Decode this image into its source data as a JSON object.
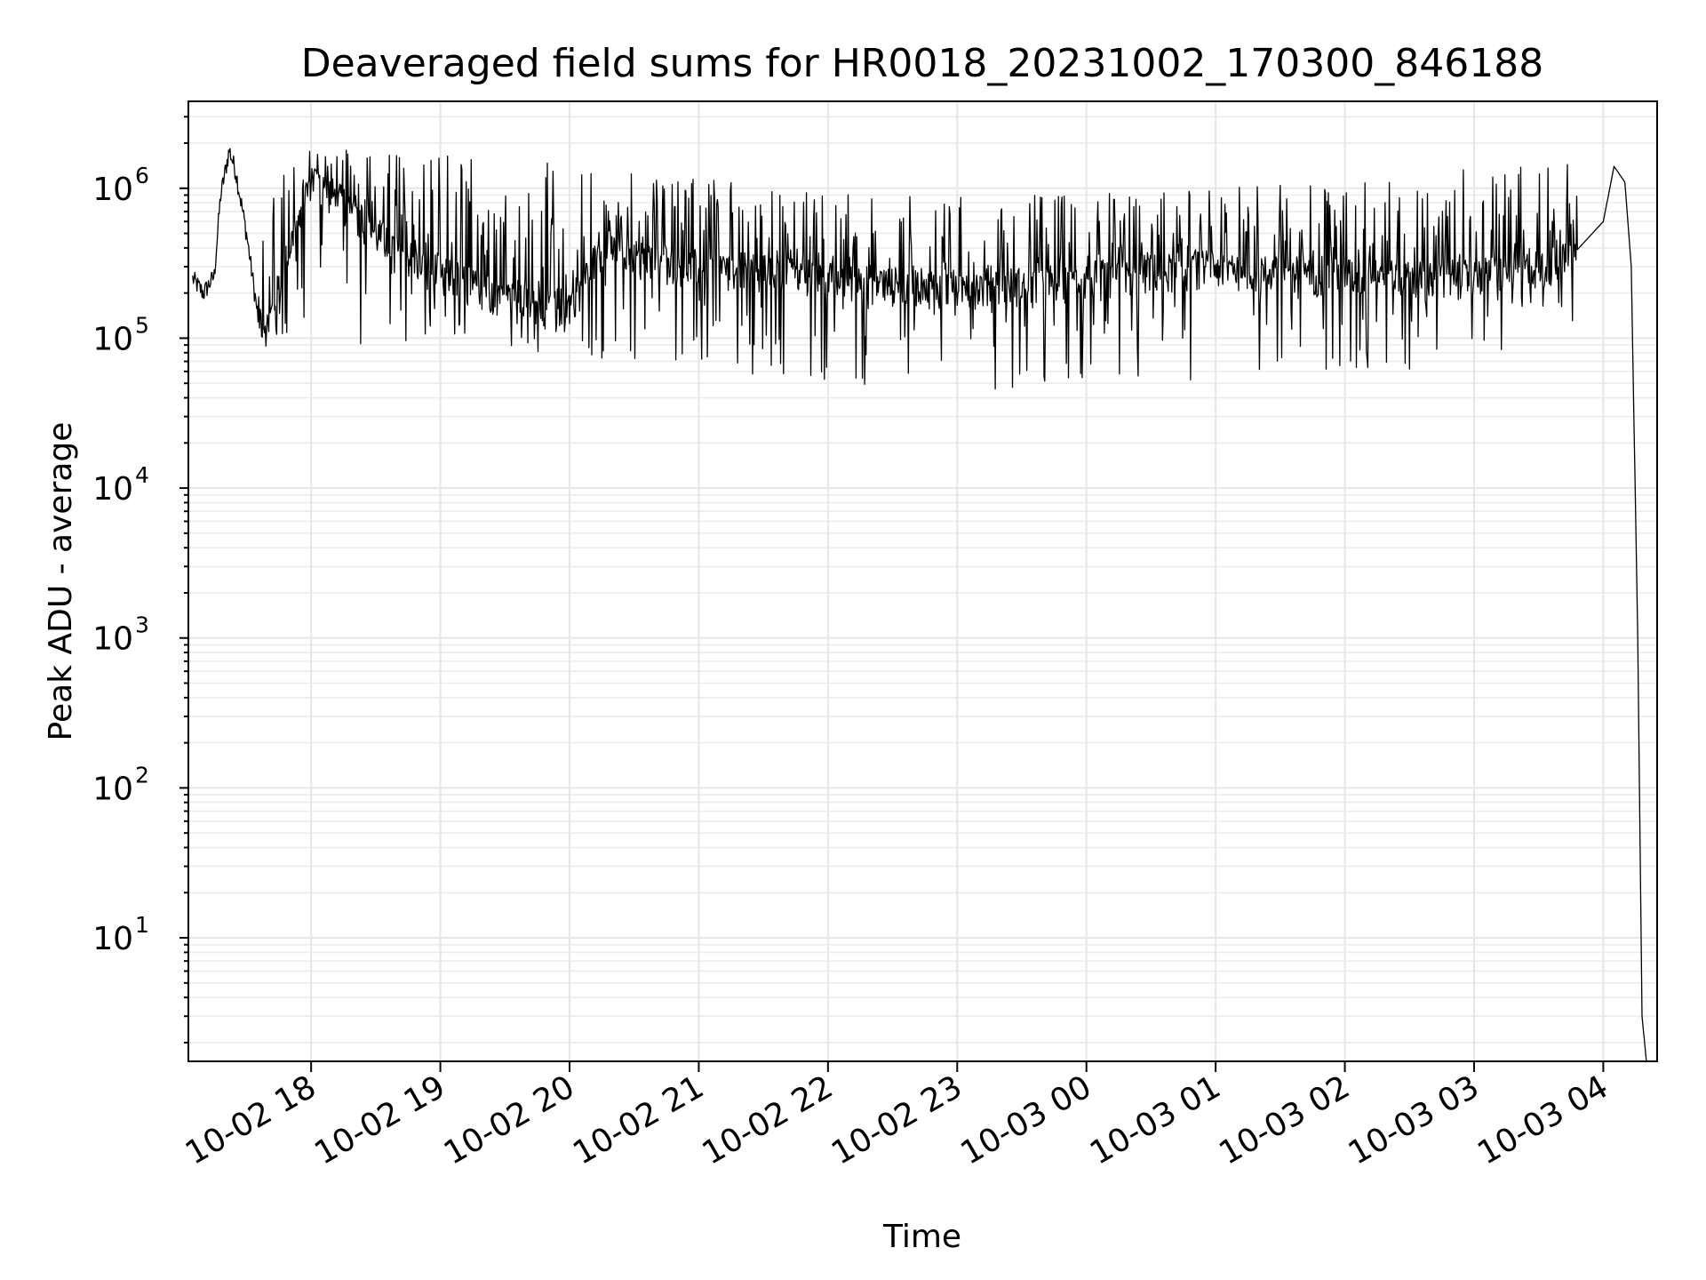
{
  "chart_data": {
    "type": "line",
    "title": "Deaveraged field sums for HR0018_20231002_170300_846188",
    "xlabel": "Time",
    "ylabel": "Peak ADU - average",
    "yscale": "log",
    "ylim": [
      1.5,
      3800000.0
    ],
    "xlim": [
      "2023-10-02 17:03",
      "2023-10-03 04:25"
    ],
    "grid": true,
    "x_tick_labels": [
      "10-02 18",
      "10-02 19",
      "10-02 20",
      "10-02 21",
      "10-02 22",
      "10-02 23",
      "10-03 00",
      "10-03 01",
      "10-03 02",
      "10-03 03",
      "10-03 04"
    ],
    "y_tick_labels": [
      {
        "base": "10",
        "exp": "1"
      },
      {
        "base": "10",
        "exp": "2"
      },
      {
        "base": "10",
        "exp": "3"
      },
      {
        "base": "10",
        "exp": "4"
      },
      {
        "base": "10",
        "exp": "5"
      },
      {
        "base": "10",
        "exp": "6"
      }
    ],
    "series": [
      {
        "color": "#000000",
        "x": [
          "2023-10-02 17:05",
          "2023-10-02 17:10",
          "2023-10-02 17:15",
          "2023-10-02 17:18",
          "2023-10-02 17:22",
          "2023-10-02 17:25",
          "2023-10-02 17:30",
          "2023-10-02 17:35",
          "2023-10-02 17:40",
          "2023-10-02 17:50",
          "2023-10-02 18:00",
          "2023-10-02 18:10",
          "2023-10-02 18:20",
          "2023-10-02 18:30",
          "2023-10-02 18:45",
          "2023-10-02 19:00",
          "2023-10-02 19:15",
          "2023-10-02 19:30",
          "2023-10-02 19:45",
          "2023-10-02 20:00",
          "2023-10-02 20:15",
          "2023-10-02 20:30",
          "2023-10-02 21:00",
          "2023-10-02 21:30",
          "2023-10-02 22:00",
          "2023-10-02 22:30",
          "2023-10-02 23:00",
          "2023-10-02 23:30",
          "2023-10-03 00:00",
          "2023-10-03 00:30",
          "2023-10-03 01:00",
          "2023-10-03 01:30",
          "2023-10-03 02:00",
          "2023-10-03 02:30",
          "2023-10-03 03:00",
          "2023-10-03 03:30",
          "2023-10-03 03:45",
          "2023-10-03 04:00",
          "2023-10-03 04:05",
          "2023-10-03 04:10",
          "2023-10-03 04:13",
          "2023-10-03 04:16",
          "2023-10-03 04:18",
          "2023-10-03 04:20"
        ],
        "y": [
          250000,
          200000,
          260000,
          900000,
          1800000,
          1300000,
          500000,
          150000,
          120000,
          400000,
          1200000,
          900000,
          700000,
          500000,
          350000,
          280000,
          230000,
          190000,
          160000,
          170000,
          400000,
          350000,
          300000,
          280000,
          250000,
          230000,
          220000,
          230000,
          250000,
          280000,
          300000,
          280000,
          260000,
          250000,
          260000,
          300000,
          350000,
          600000,
          1400000,
          1100000,
          300000,
          1000,
          3,
          1.5
        ],
        "spike_envelope": {
          "max": [
            1900000,
            1800000,
            1700000,
            1500000,
            1300000,
            1100000,
            1000000,
            900000,
            900000,
            950000,
            1000000,
            1100000,
            1200000,
            1400000,
            1500000
          ],
          "min": [
            100000,
            90000,
            85000,
            80000,
            70000,
            60000,
            50000,
            45000,
            40000,
            45000,
            50000,
            55000,
            60000,
            70000,
            80000
          ]
        }
      }
    ]
  }
}
